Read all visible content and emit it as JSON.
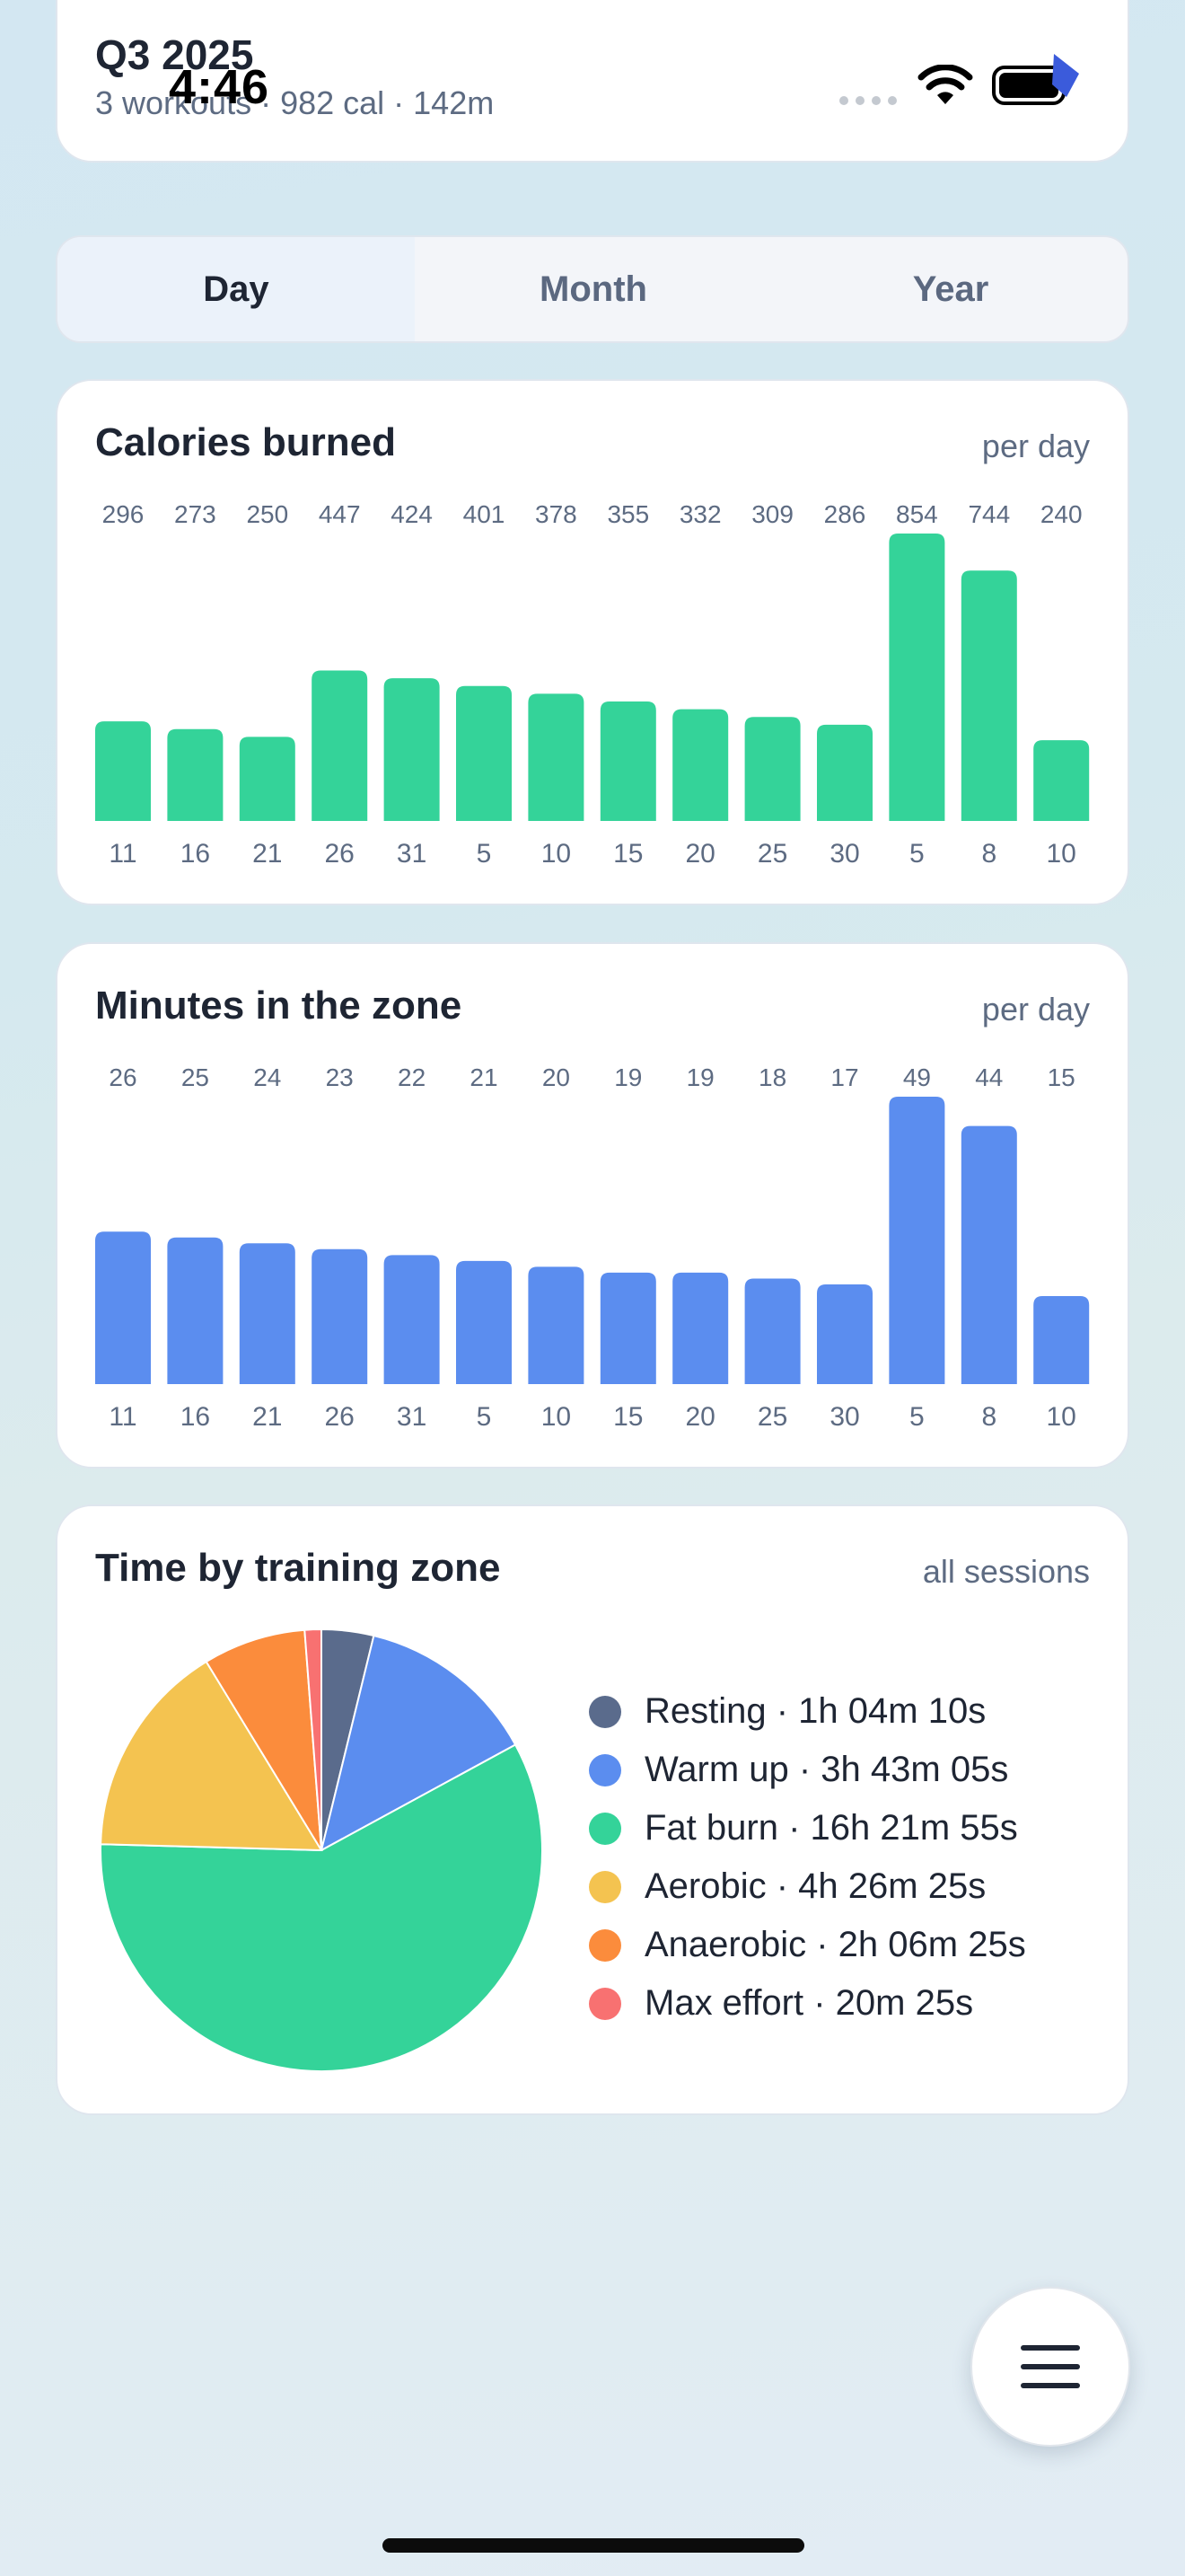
{
  "status_bar": {
    "time": "4:46"
  },
  "header": {
    "title": "Q3 2025",
    "subtitle": "3 workouts · 982 cal · 142m"
  },
  "tabs": [
    {
      "label": "Day",
      "active": true
    },
    {
      "label": "Month",
      "active": false
    },
    {
      "label": "Year",
      "active": false
    }
  ],
  "calories": {
    "title": "Calories burned",
    "note": "per day",
    "color": "#34d399",
    "chart_data": {
      "type": "bar",
      "categories": [
        "11",
        "16",
        "21",
        "26",
        "31",
        "5",
        "10",
        "15",
        "20",
        "25",
        "30",
        "5",
        "8",
        "10"
      ],
      "values": [
        296,
        273,
        250,
        447,
        424,
        401,
        378,
        355,
        332,
        309,
        286,
        854,
        744,
        240
      ],
      "ylim": [
        0,
        854
      ]
    }
  },
  "zone_minutes": {
    "title": "Minutes in the zone",
    "note": "per day",
    "color": "#5b8def",
    "chart_data": {
      "type": "bar",
      "categories": [
        "11",
        "16",
        "21",
        "26",
        "31",
        "5",
        "10",
        "15",
        "20",
        "25",
        "30",
        "5",
        "8",
        "10"
      ],
      "values": [
        26,
        25,
        24,
        23,
        22,
        21,
        20,
        19,
        19,
        18,
        17,
        49,
        44,
        15
      ],
      "ylim": [
        0,
        49
      ]
    }
  },
  "training_zones": {
    "title": "Time by training zone",
    "note": "all sessions",
    "chart_data": {
      "type": "pie",
      "slices": [
        {
          "label": "Resting · 1h 04m 10s",
          "seconds": 3850,
          "color": "#5a6b8c"
        },
        {
          "label": "Warm up · 3h 43m 05s",
          "seconds": 13385,
          "color": "#5b8def"
        },
        {
          "label": "Fat burn · 16h 21m 55s",
          "seconds": 58915,
          "color": "#34d399"
        },
        {
          "label": "Aerobic · 4h 26m 25s",
          "seconds": 15985,
          "color": "#f4c350"
        },
        {
          "label": "Anaerobic · 2h 06m 25s",
          "seconds": 7585,
          "color": "#fb8c3c"
        },
        {
          "label": "Max effort · 20m 25s",
          "seconds": 1225,
          "color": "#f87171"
        }
      ]
    }
  },
  "fab": {
    "icon": "menu-icon"
  }
}
